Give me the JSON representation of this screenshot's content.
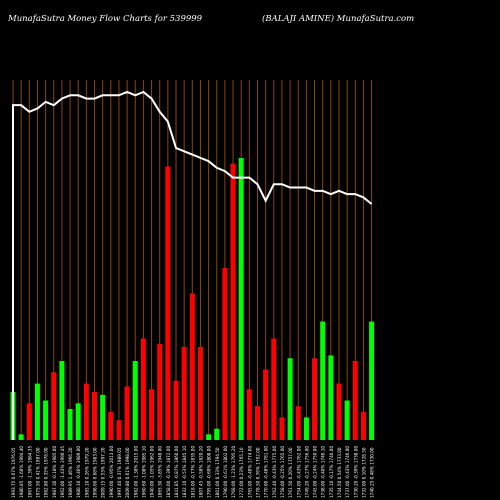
{
  "header": {
    "left": "MunafaSutra  Money Flow  Charts for 539999",
    "right": "(BALAJI AMINE) MunafaSutra.com"
  },
  "chart_data": {
    "type": "bar",
    "title": "MunafaSutra  Money Flow  Charts for 539999",
    "subtitle": "(BALAJI AMINE) MunafaSutra.com",
    "grid": "vertical",
    "ylim": [
      0,
      100
    ],
    "colors": {
      "up": "#00ff00",
      "down": "#ff0000",
      "line": "#ffffff",
      "grid": "#8b4513",
      "background": "#000000"
    },
    "categories": [
      "1993.75 0.67% 1976.05",
      "1980.85 -1.60% 1994.40",
      "1967.00 -1.39% 1984.35",
      "1975.50 0.41% 1987.00",
      "1982.80 0.35% 1978.00",
      "1987.30 -0.18% 1985.00",
      "1962.00 -1.43% 1990.45",
      "1989.95 1.46% 1966.20",
      "1980.10 -0.46% 1989.00",
      "1985.10 0.26% 1979.20",
      "1998.60 0.68% 1983.00",
      "2009.15 0.53% 1997.20",
      "1990.00 -0.95% 2013.00",
      "1997.40 0.37% 1989.05",
      "2009.80 0.61% 1998.00",
      "1982.00 -1.38% 2015.00",
      "1960.60 -1.08% 1985.10",
      "1940.00 -1.05% 1962.00",
      "1865.30 -3.85% 1948.00",
      "1858.00 -0.39% 1872.00",
      "1841.85 -0.87% 1860.00",
      "1832.10 -0.53% 1845.10",
      "1818.00 -0.77% 1835.00",
      "1807.45 -0.58% 1820.20",
      "1795.00 -0.69% 1808.00",
      "1801.00 0.33% 1794.50",
      "1790.00 -0.61% 1802.00",
      "1768.00 -1.23% 1795.20",
      "1772.00 0.23% 1765.10",
      "1765.00 -0.40% 1774.00",
      "1778.50 0.76% 1762.00",
      "1770.00 -0.48% 1781.00",
      "1762.40 -0.43% 1775.00",
      "1758.00 -0.25% 1765.00",
      "1761.50 0.20% 1757.00",
      "1754.00 -0.43% 1762.00",
      "1749.20 -0.27% 1756.00",
      "1745.00 -0.24% 1750.00",
      "1738.00 -0.40% 1746.10",
      "1735.10 -0.17% 1740.00",
      "1744.50 0.54% 1733.00",
      "1737.00 -0.43% 1746.00",
      "1730.20 -0.39% 1738.00",
      "1732.00 0.10% 1728.50",
      "1740.25 0.48% 1730.00"
    ],
    "flow_direction": [
      "up",
      "up",
      "down",
      "up",
      "up",
      "down",
      "up",
      "up",
      "up",
      "down",
      "down",
      "up",
      "down",
      "down",
      "down",
      "up",
      "down",
      "down",
      "down",
      "down",
      "down",
      "down",
      "down",
      "down",
      "up",
      "up",
      "down",
      "down",
      "up",
      "down",
      "down",
      "down",
      "down",
      "down",
      "up",
      "down",
      "up",
      "down",
      "up",
      "up",
      "down",
      "up",
      "down",
      "down",
      "up"
    ],
    "values": [
      17,
      2,
      13,
      20,
      14,
      24,
      28,
      11,
      13,
      20,
      17,
      16,
      10,
      7,
      19,
      28,
      36,
      18,
      34,
      97,
      21,
      33,
      52,
      33,
      2,
      4,
      61,
      98,
      100,
      18,
      12,
      25,
      36,
      8,
      29,
      12,
      8,
      29,
      42,
      30,
      20,
      14,
      28,
      10,
      42
    ],
    "line": [
      100,
      100,
      98,
      99,
      101,
      100,
      102,
      103,
      103,
      102,
      102,
      103,
      103,
      103,
      104,
      103,
      104,
      102,
      98,
      95,
      87,
      86,
      85,
      84,
      83,
      81,
      80,
      78,
      78,
      78,
      76,
      71,
      76,
      76,
      75,
      75,
      75,
      74,
      74,
      73,
      74,
      73,
      73,
      72,
      70
    ]
  }
}
